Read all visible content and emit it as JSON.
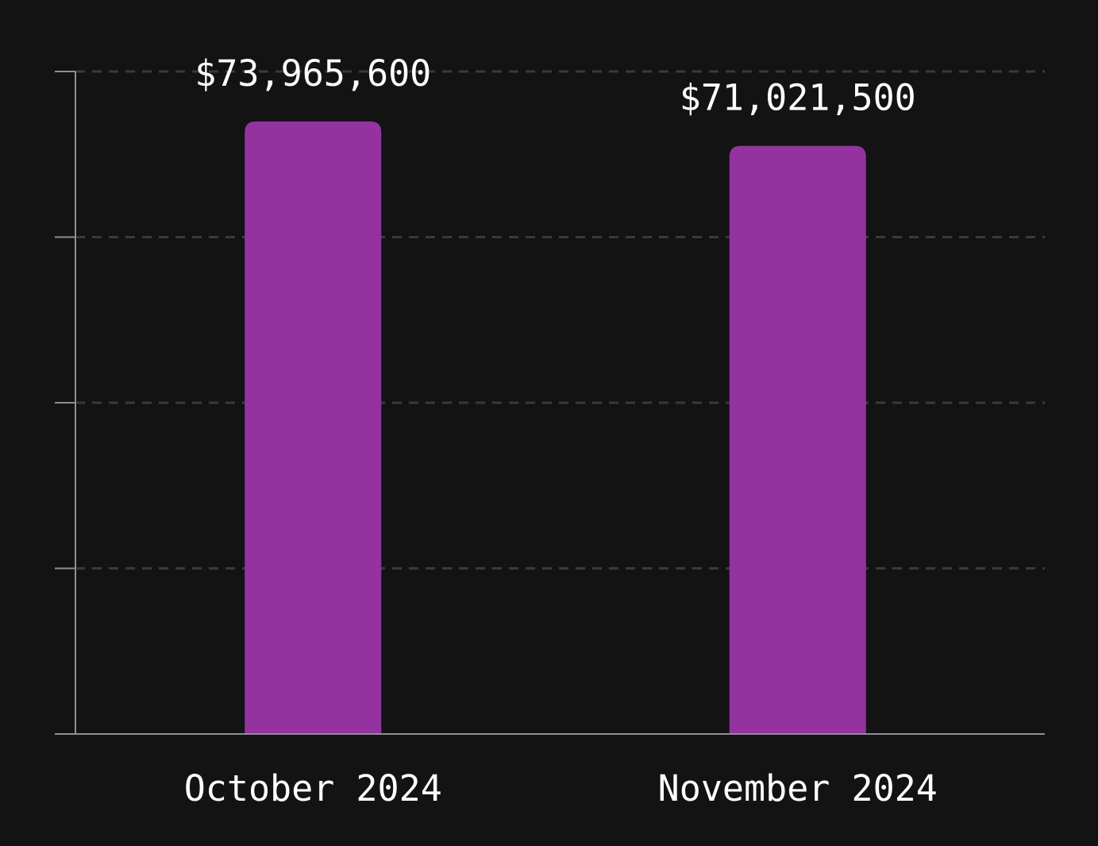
{
  "chart_data": {
    "type": "bar",
    "title": "",
    "xlabel": "",
    "ylabel": "",
    "categories": [
      "October 2024",
      "November 2024"
    ],
    "values": [
      73965600,
      71021500
    ],
    "data_labels": [
      "$73,965,600",
      "$71,021,500"
    ],
    "ylim": [
      0,
      80000000
    ],
    "y_ticks": [
      0,
      20000000,
      40000000,
      60000000,
      80000000
    ],
    "y_tick_labels_visible": false,
    "grid": true,
    "legend": "none",
    "bar_color": "#9433a0",
    "background_color": "#131313",
    "text_color": "#ffffff",
    "axis_color": "#8e8e96",
    "grid_color": "#3a3a3a"
  }
}
